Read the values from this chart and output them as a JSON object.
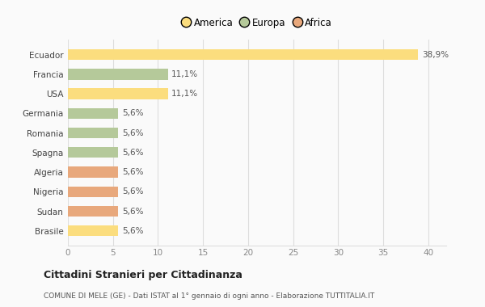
{
  "categories": [
    "Brasile",
    "Sudan",
    "Nigeria",
    "Algeria",
    "Spagna",
    "Romania",
    "Germania",
    "USA",
    "Francia",
    "Ecuador"
  ],
  "values": [
    5.6,
    5.6,
    5.6,
    5.6,
    5.6,
    5.6,
    5.6,
    11.1,
    11.1,
    38.9
  ],
  "labels": [
    "5,6%",
    "5,6%",
    "5,6%",
    "5,6%",
    "5,6%",
    "5,6%",
    "5,6%",
    "11,1%",
    "11,1%",
    "38,9%"
  ],
  "colors": [
    "#FBDD7E",
    "#E8A87C",
    "#E8A87C",
    "#E8A87C",
    "#B5C99A",
    "#B5C99A",
    "#B5C99A",
    "#FBDD7E",
    "#B5C99A",
    "#FBDD7E"
  ],
  "legend": [
    {
      "label": "America",
      "color": "#FBDD7E"
    },
    {
      "label": "Europa",
      "color": "#B5C99A"
    },
    {
      "label": "Africa",
      "color": "#E8A87C"
    }
  ],
  "title": "Cittadini Stranieri per Cittadinanza",
  "subtitle": "COMUNE DI MELE (GE) - Dati ISTAT al 1° gennaio di ogni anno - Elaborazione TUTTITALIA.IT",
  "xlim": [
    0,
    42
  ],
  "xticks": [
    0,
    5,
    10,
    15,
    20,
    25,
    30,
    35,
    40
  ],
  "background_color": "#FAFAFA",
  "grid_color": "#DDDDDD",
  "bar_height": 0.55
}
